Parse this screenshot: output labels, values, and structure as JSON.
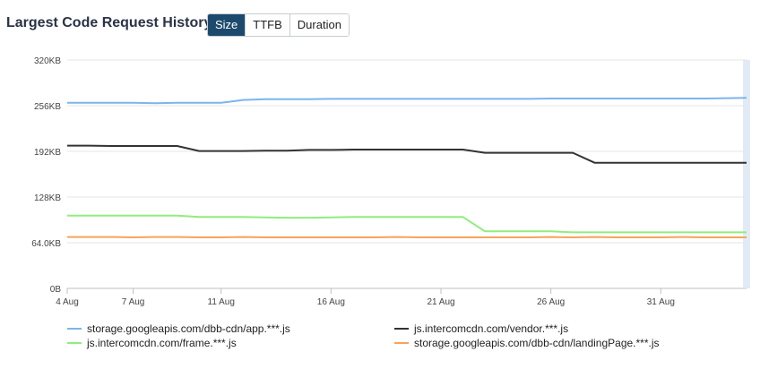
{
  "header": {
    "title": "Largest Code Request History",
    "tabs": [
      {
        "label": "Size",
        "active": true
      },
      {
        "label": "TTFB",
        "active": false
      },
      {
        "label": "Duration",
        "active": false
      }
    ]
  },
  "chart_data": {
    "type": "line",
    "title": "Largest Code Request History",
    "x_tick_labels": [
      "4 Aug",
      "7 Aug",
      "11 Aug",
      "16 Aug",
      "21 Aug",
      "26 Aug",
      "31 Aug"
    ],
    "x_tick_days": [
      4,
      7,
      11,
      16,
      21,
      26,
      31
    ],
    "xlim": [
      4,
      34.9
    ],
    "y_tick_labels": [
      "0B",
      "64.0KB",
      "128KB",
      "192KB",
      "256KB",
      "320KB"
    ],
    "y_tick_values": [
      0,
      64,
      128,
      192,
      256,
      320
    ],
    "ylim": [
      0,
      320
    ],
    "y_unit": "KB",
    "grid": "horizontal",
    "legend_position": "bottom",
    "highlight_x": 34.9,
    "series": [
      {
        "name": "storage.googleapis.com/dbb-cdn/app.***.js",
        "color": "#7cb5ec",
        "points": [
          [
            4,
            260
          ],
          [
            5,
            260
          ],
          [
            6,
            260
          ],
          [
            7,
            260
          ],
          [
            8,
            259.5
          ],
          [
            9,
            260
          ],
          [
            10,
            260
          ],
          [
            11,
            260
          ],
          [
            12,
            264
          ],
          [
            13,
            265
          ],
          [
            14,
            265
          ],
          [
            15,
            265
          ],
          [
            16,
            265.5
          ],
          [
            17,
            265.5
          ],
          [
            18,
            265.5
          ],
          [
            19,
            265.5
          ],
          [
            20,
            265.5
          ],
          [
            21,
            265.5
          ],
          [
            22,
            265.5
          ],
          [
            23,
            265.5
          ],
          [
            24,
            265.5
          ],
          [
            25,
            265.5
          ],
          [
            26,
            266
          ],
          [
            27,
            266
          ],
          [
            28,
            266
          ],
          [
            29,
            266
          ],
          [
            30,
            266
          ],
          [
            31,
            266
          ],
          [
            32,
            266
          ],
          [
            33,
            266
          ],
          [
            34,
            266.5
          ],
          [
            34.9,
            267
          ]
        ]
      },
      {
        "name": "js.intercomcdn.com/vendor.***.js",
        "color": "#333333",
        "points": [
          [
            4,
            200
          ],
          [
            5,
            200
          ],
          [
            6,
            199.5
          ],
          [
            7,
            199.5
          ],
          [
            8,
            199.5
          ],
          [
            9,
            199.5
          ],
          [
            10,
            192.5
          ],
          [
            11,
            192.5
          ],
          [
            12,
            192.5
          ],
          [
            13,
            193
          ],
          [
            14,
            193
          ],
          [
            15,
            194
          ],
          [
            16,
            194
          ],
          [
            17,
            194.5
          ],
          [
            18,
            194.5
          ],
          [
            19,
            194.5
          ],
          [
            20,
            194.5
          ],
          [
            21,
            194.5
          ],
          [
            22,
            194.5
          ],
          [
            23,
            190
          ],
          [
            24,
            190
          ],
          [
            25,
            190
          ],
          [
            26,
            190
          ],
          [
            27,
            190
          ],
          [
            28,
            176
          ],
          [
            29,
            176
          ],
          [
            30,
            176
          ],
          [
            31,
            176
          ],
          [
            32,
            176
          ],
          [
            33,
            176
          ],
          [
            34,
            176
          ],
          [
            34.9,
            176
          ]
        ]
      },
      {
        "name": "js.intercomcdn.com/frame.***.js",
        "color": "#90ed7d",
        "points": [
          [
            4,
            102
          ],
          [
            5,
            102
          ],
          [
            6,
            102
          ],
          [
            7,
            102
          ],
          [
            8,
            102
          ],
          [
            9,
            102
          ],
          [
            10,
            100
          ],
          [
            11,
            100
          ],
          [
            12,
            100
          ],
          [
            13,
            99.5
          ],
          [
            14,
            99
          ],
          [
            15,
            99
          ],
          [
            16,
            99.5
          ],
          [
            17,
            100
          ],
          [
            18,
            100
          ],
          [
            19,
            100
          ],
          [
            20,
            100
          ],
          [
            21,
            100
          ],
          [
            22,
            100
          ],
          [
            23,
            80
          ],
          [
            24,
            80
          ],
          [
            25,
            80
          ],
          [
            26,
            80
          ],
          [
            27,
            78.5
          ],
          [
            28,
            78.5
          ],
          [
            29,
            78.5
          ],
          [
            30,
            78.5
          ],
          [
            31,
            78.5
          ],
          [
            32,
            78.5
          ],
          [
            33,
            78.5
          ],
          [
            34,
            78.5
          ],
          [
            34.9,
            78.5
          ]
        ]
      },
      {
        "name": "storage.googleapis.com/dbb-cdn/landingPage.***.js",
        "color": "#f7a35c",
        "points": [
          [
            4,
            72
          ],
          [
            5,
            72
          ],
          [
            6,
            72
          ],
          [
            7,
            71.5
          ],
          [
            8,
            72
          ],
          [
            9,
            72
          ],
          [
            10,
            71.5
          ],
          [
            11,
            71.5
          ],
          [
            12,
            72
          ],
          [
            13,
            71.5
          ],
          [
            14,
            71.5
          ],
          [
            15,
            71.5
          ],
          [
            16,
            71.5
          ],
          [
            17,
            71.5
          ],
          [
            18,
            71.5
          ],
          [
            19,
            72
          ],
          [
            20,
            71.5
          ],
          [
            21,
            71.5
          ],
          [
            22,
            71.5
          ],
          [
            23,
            71.5
          ],
          [
            24,
            71.5
          ],
          [
            25,
            71.5
          ],
          [
            26,
            72
          ],
          [
            27,
            71.5
          ],
          [
            28,
            72
          ],
          [
            29,
            71.5
          ],
          [
            30,
            71.5
          ],
          [
            31,
            71.5
          ],
          [
            32,
            72
          ],
          [
            33,
            71.5
          ],
          [
            34,
            71.5
          ],
          [
            34.9,
            71.5
          ]
        ]
      }
    ]
  }
}
